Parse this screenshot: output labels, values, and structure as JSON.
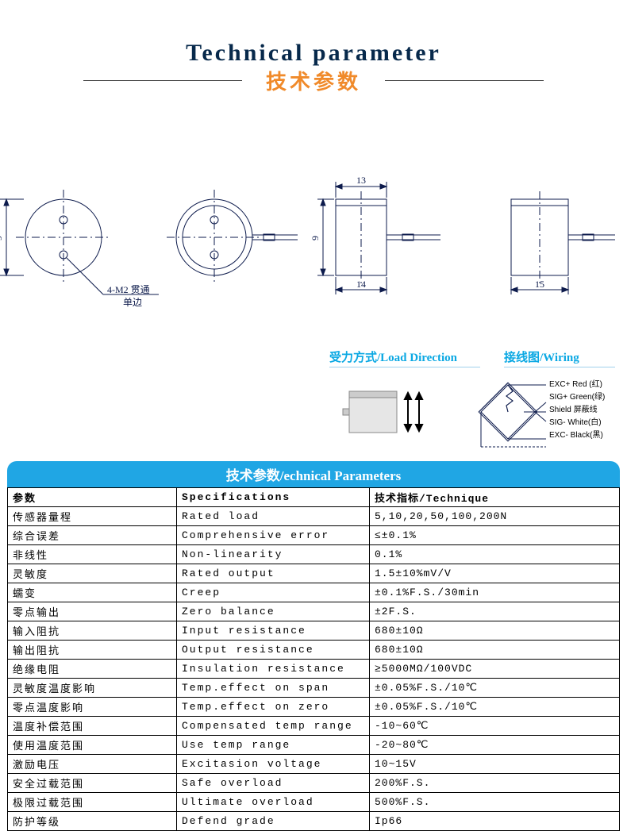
{
  "header": {
    "title_en": "Technical parameter",
    "title_cn": "技术参数",
    "hr_color": "#444444",
    "title_en_color": "#07294b",
    "title_cn_color": "#f08a2a"
  },
  "drawing": {
    "dim_top": "13",
    "dim_bottom1": "14",
    "dim_bottom2": "15",
    "side_dim": "9",
    "callout": "4-M2 贯通",
    "callout_sub": "单边",
    "stroke": "#0d1b4c"
  },
  "sub": {
    "load_label": "受力方式/Load Direction",
    "wiring_label": "接线图/Wiring",
    "wiring": [
      {
        "text": "EXC+ Red  (红)"
      },
      {
        "text": "SIG+ Green(绿)"
      },
      {
        "text": "Shield  屏蔽线"
      },
      {
        "text": "SIG- White(白)"
      },
      {
        "text": "EXC- Black(黑)"
      }
    ]
  },
  "banner": "技术参数/echnical Parameters",
  "banner_bg": "#20a6e4",
  "table": {
    "header": [
      "参数",
      "Specifications",
      "技术指标/Technique"
    ],
    "rows": [
      [
        "传感器量程",
        "Rated load",
        "5,10,20,50,100,200N"
      ],
      [
        "综合误差",
        "Comprehensive error",
        "≤±0.1%"
      ],
      [
        "非线性",
        "Non-linearity",
        "0.1%"
      ],
      [
        "灵敏度",
        "Rated output",
        "1.5±10%mV/V"
      ],
      [
        "蠕变",
        "Creep",
        "±0.1%F.S./30min"
      ],
      [
        "零点输出",
        "Zero balance",
        "±2F.S."
      ],
      [
        "输入阻抗",
        "Input resistance",
        "680±10Ω"
      ],
      [
        "输出阻抗",
        "Output resistance",
        "680±10Ω"
      ],
      [
        "绝缘电阻",
        "Insulation resistance",
        "≥5000MΩ/100VDC"
      ],
      [
        "灵敏度温度影响",
        "Temp.effect on span",
        "±0.05%F.S./10℃"
      ],
      [
        "零点温度影响",
        "Temp.effect on zero",
        "±0.05%F.S./10℃"
      ],
      [
        "温度补偿范围",
        "Compensated temp range",
        "-10~60℃"
      ],
      [
        "使用温度范围",
        "Use temp range",
        "-20~80℃"
      ],
      [
        "激励电压",
        "Excitasion voltage",
        "10~15V"
      ],
      [
        "安全过载范围",
        "Safe overload",
        "200%F.S."
      ],
      [
        "极限过载范围",
        "Ultimate overload",
        "500%F.S."
      ],
      [
        "防护等级",
        "Defend grade",
        "Ip66"
      ]
    ]
  }
}
